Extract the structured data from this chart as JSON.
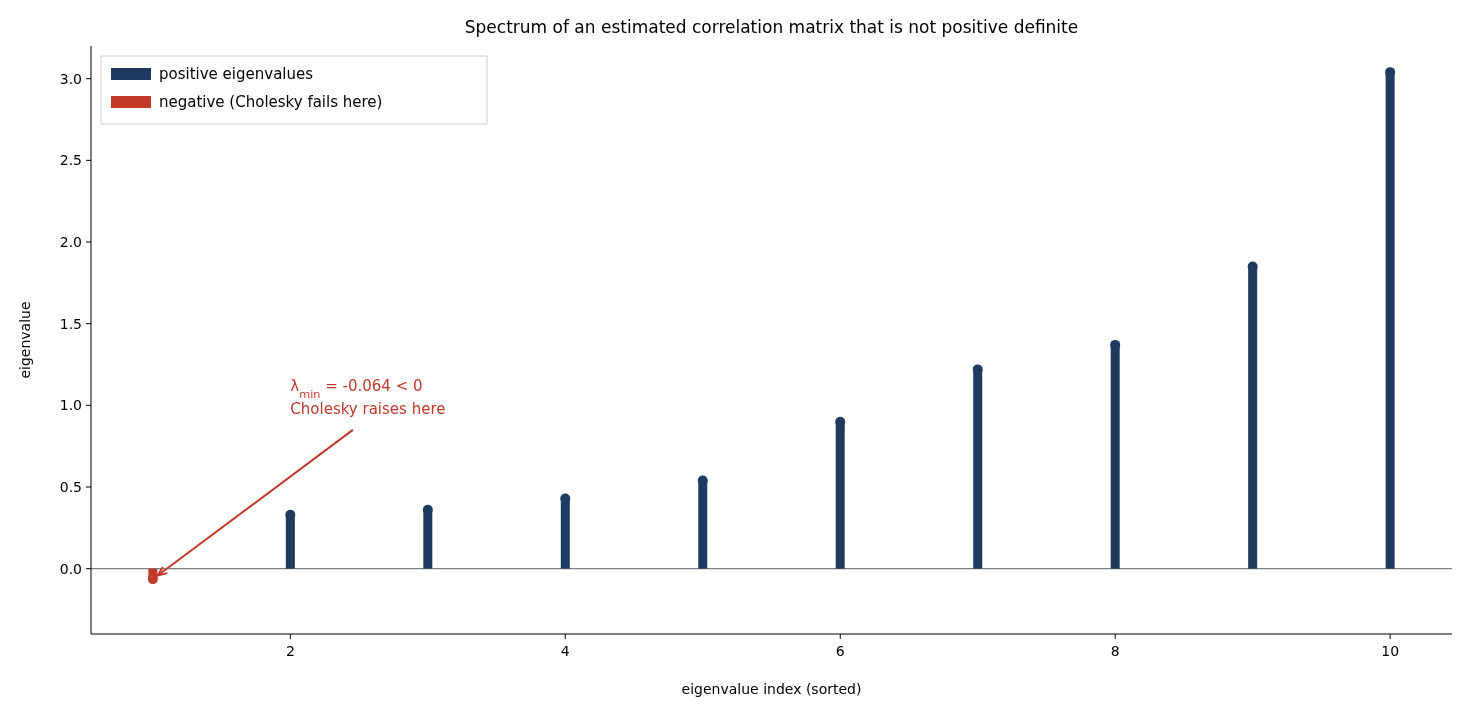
{
  "chart_data": {
    "type": "lollipop",
    "title": "Spectrum of an estimated correlation matrix that is not positive definite",
    "xlabel": "eigenvalue index (sorted)",
    "ylabel": "eigenvalue",
    "series": [
      {
        "name": "positive eigenvalues",
        "color": "#1f3a5f",
        "x": [
          2,
          3,
          4,
          5,
          6,
          7,
          8,
          9,
          10
        ],
        "values": [
          0.33,
          0.36,
          0.43,
          0.54,
          0.9,
          1.22,
          1.37,
          1.85,
          3.04
        ]
      },
      {
        "name": "negative (Cholesky fails here)",
        "color": "#c0392b",
        "x": [
          1
        ],
        "values": [
          -0.064
        ]
      }
    ],
    "xlim": [
      0.55,
      10.45
    ],
    "ylim": [
      -0.4,
      3.2
    ],
    "xticks": [
      2,
      4,
      6,
      8,
      10
    ],
    "yticks": [
      {
        "value": 0,
        "label": "0.0"
      },
      0.5,
      {
        "value": 1,
        "label": "1.0"
      },
      1.5,
      {
        "value": 2,
        "label": "2.0"
      },
      2.5,
      {
        "value": 3,
        "label": "3.0"
      }
    ],
    "ref_lines": [
      {
        "axis": "y",
        "value": 0,
        "color": "#808080"
      }
    ],
    "annotations": [
      {
        "text": "λ$_{min}$ = -0.064 < 0\nCholesky raises here",
        "x": 1,
        "y": -0.064
      }
    ],
    "legend": "top left",
    "marker": "circle",
    "grid": false
  }
}
